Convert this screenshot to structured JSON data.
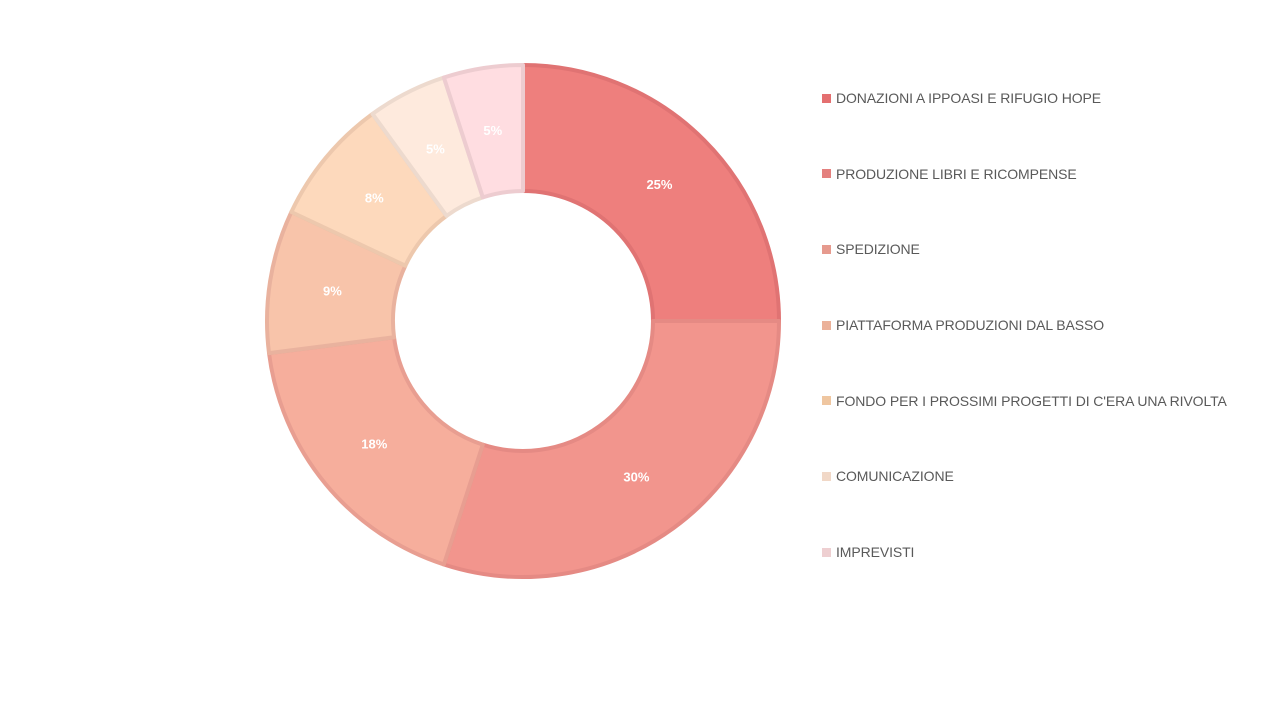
{
  "chart_data": {
    "type": "pie",
    "subtype": "donut",
    "title": "",
    "legend_position": "right",
    "categories": [
      "DONAZIONI A IPPOASI E RIFUGIO HOPE",
      "PRODUZIONE LIBRI E RICOMPENSE",
      "SPEDIZIONE",
      "PIATTAFORMA PRODUZIONI DAL BASSO",
      "FONDO PER I PROSSIMI PROGETTI DI C'ERA UNA RIVOLTA",
      "COMUNICAZIONE",
      "IMPREVISTI"
    ],
    "values": [
      25,
      30,
      18,
      9,
      8,
      5,
      5
    ],
    "labels": [
      "25%",
      "30%",
      "18%",
      "9%",
      "8%",
      "5%",
      "5%"
    ],
    "colors": [
      "#EE7F7D",
      "#F2958D",
      "#F6AE9C",
      "#F8C4AA",
      "#FDD9BC",
      "#FEEADD",
      "#FFDDE1"
    ],
    "stroke_colors": [
      "#E07373",
      "#E58A84",
      "#E89E91",
      "#E9B29E",
      "#EDC8AD",
      "#EDDACE",
      "#EDCCD0"
    ],
    "legend_swatch_colors": [
      "#E46F70",
      "#E4807E",
      "#E69A8E",
      "#EBB199",
      "#EFC6A0",
      "#F1D8C7",
      "#EECFD1"
    ]
  }
}
